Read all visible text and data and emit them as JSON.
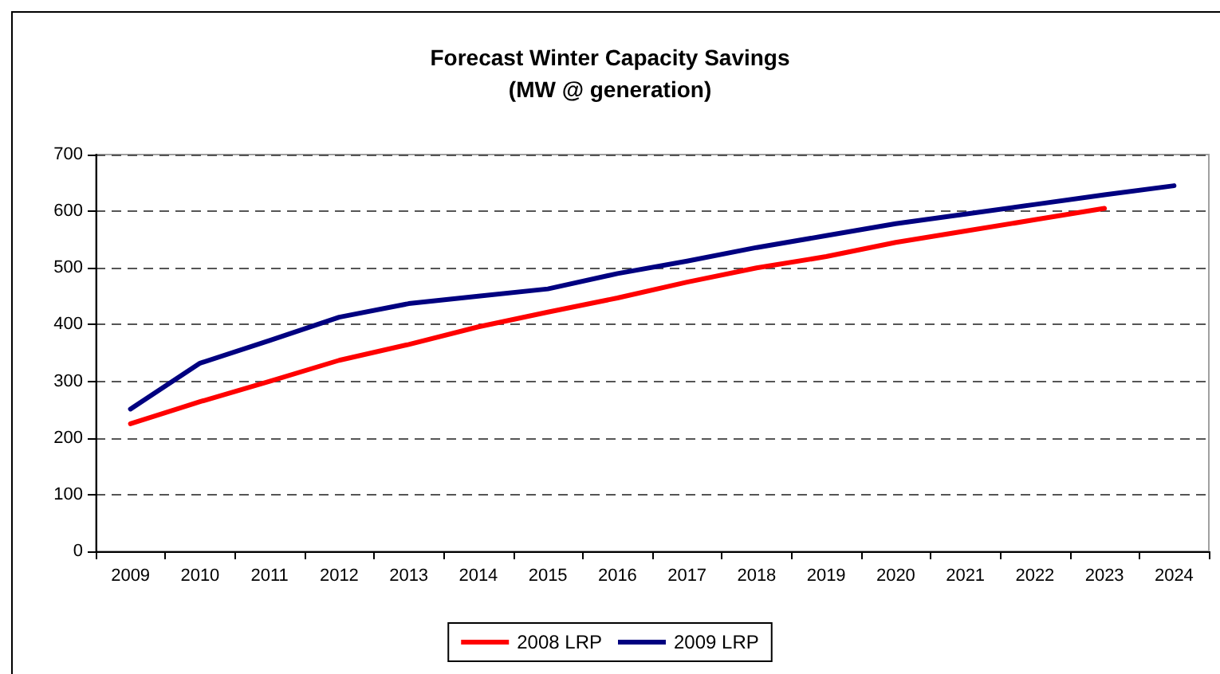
{
  "chart_data": {
    "type": "line",
    "title": "Forecast Winter Capacity Savings",
    "subtitle": "(MW @ generation)",
    "categories": [
      "2009",
      "2010",
      "2011",
      "2012",
      "2013",
      "2014",
      "2015",
      "2016",
      "2017",
      "2018",
      "2019",
      "2020",
      "2021",
      "2022",
      "2023",
      "2024"
    ],
    "series": [
      {
        "name": "2008 LRP",
        "color": "#ff0000",
        "values": [
          225,
          264,
          300,
          337,
          365,
          396,
          422,
          447,
          475,
          500,
          520,
          545,
          565,
          585,
          605,
          null
        ]
      },
      {
        "name": "2009 LRP",
        "color": "#000080",
        "values": [
          251,
          332,
          372,
          413,
          437,
          450,
          463,
          490,
          512,
          536,
          557,
          578,
          595,
          612,
          629,
          645
        ]
      }
    ],
    "ylim": [
      0,
      700
    ],
    "yticks": [
      0,
      100,
      200,
      300,
      400,
      500,
      600,
      700
    ],
    "grid": "y",
    "legend": "bottom",
    "marker": "none",
    "line_style": "solid"
  }
}
